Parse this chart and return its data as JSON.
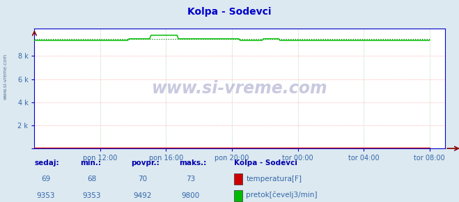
{
  "title": "Kolpa - Sodevci",
  "bg_color": "#dce9f0",
  "plot_bg_color": "#ffffff",
  "grid_color_h": "#ff9999",
  "grid_color_v": "#99cc99",
  "x_labels": [
    "pon 12:00",
    "pon 16:00",
    "pon 20:00",
    "tor 00:00",
    "tor 04:00",
    "tor 08:00"
  ],
  "x_ticks_norm": [
    0.1667,
    0.3333,
    0.5,
    0.6667,
    0.8333,
    1.0
  ],
  "y_ticks": [
    0,
    2000,
    4000,
    6000,
    8000
  ],
  "y_labels": [
    "",
    "2 k",
    "4 k",
    "6 k",
    "8 k"
  ],
  "ylim": [
    0,
    10400
  ],
  "xlim_max": 1.04,
  "temp_value": 69,
  "temp_min": 68,
  "temp_avg": 70,
  "temp_max": 73,
  "flow_value": 9353,
  "flow_min": 9353,
  "flow_avg": 9492,
  "flow_max": 9800,
  "temp_color": "#cc0000",
  "flow_color": "#00bb00",
  "flow_dot_color": "#008800",
  "station_label": "Kolpa - Sodevci",
  "label_temp": "temperatura[F]",
  "label_flow": "pretok[čevelj3/min]",
  "watermark": "www.si-vreme.com",
  "sidebar_text": "www.si-vreme.com",
  "title_color": "#0000cc",
  "text_color": "#3366aa",
  "header_color": "#0000aa",
  "arrow_color": "#880000",
  "axes_color": "#0000cc",
  "bottom_header_labels": [
    "sedaj:",
    "min.:",
    "povpr.:",
    "maks.:"
  ]
}
